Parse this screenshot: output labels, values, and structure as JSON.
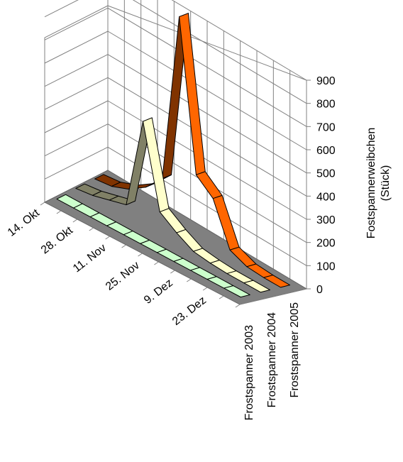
{
  "chart_data": {
    "type": "line",
    "subtype": "3d-ribbon",
    "title": "",
    "ylabel_lines": [
      "Fostspannerweibchen",
      "(Stück)"
    ],
    "ylim": [
      0,
      900
    ],
    "yticks": [
      0,
      100,
      200,
      300,
      400,
      500,
      600,
      700,
      800,
      900
    ],
    "x_tick_labels": [
      "14. Okt",
      "28. Okt",
      "11. Nov",
      "25. Nov",
      "9. Dez",
      "23. Dez"
    ],
    "series": [
      {
        "name": "Frostspanner 2003",
        "color": "#ccffcc",
        "values": [
          5,
          5,
          5,
          5,
          5,
          5,
          5,
          5,
          5,
          5,
          5,
          5
        ]
      },
      {
        "name": "Frostspanner 2004",
        "color": "#ffffcc",
        "values": [
          10,
          20,
          40,
          60,
          460,
          110,
          60,
          20,
          10,
          5,
          5,
          5
        ]
      },
      {
        "name": "Frostspanner 2005",
        "color": "#ff6600",
        "values": [
          10,
          20,
          50,
          100,
          180,
          920,
          280,
          220,
          40,
          10,
          5,
          5
        ]
      }
    ],
    "grid": true,
    "legend": "series labels on depth axis"
  }
}
